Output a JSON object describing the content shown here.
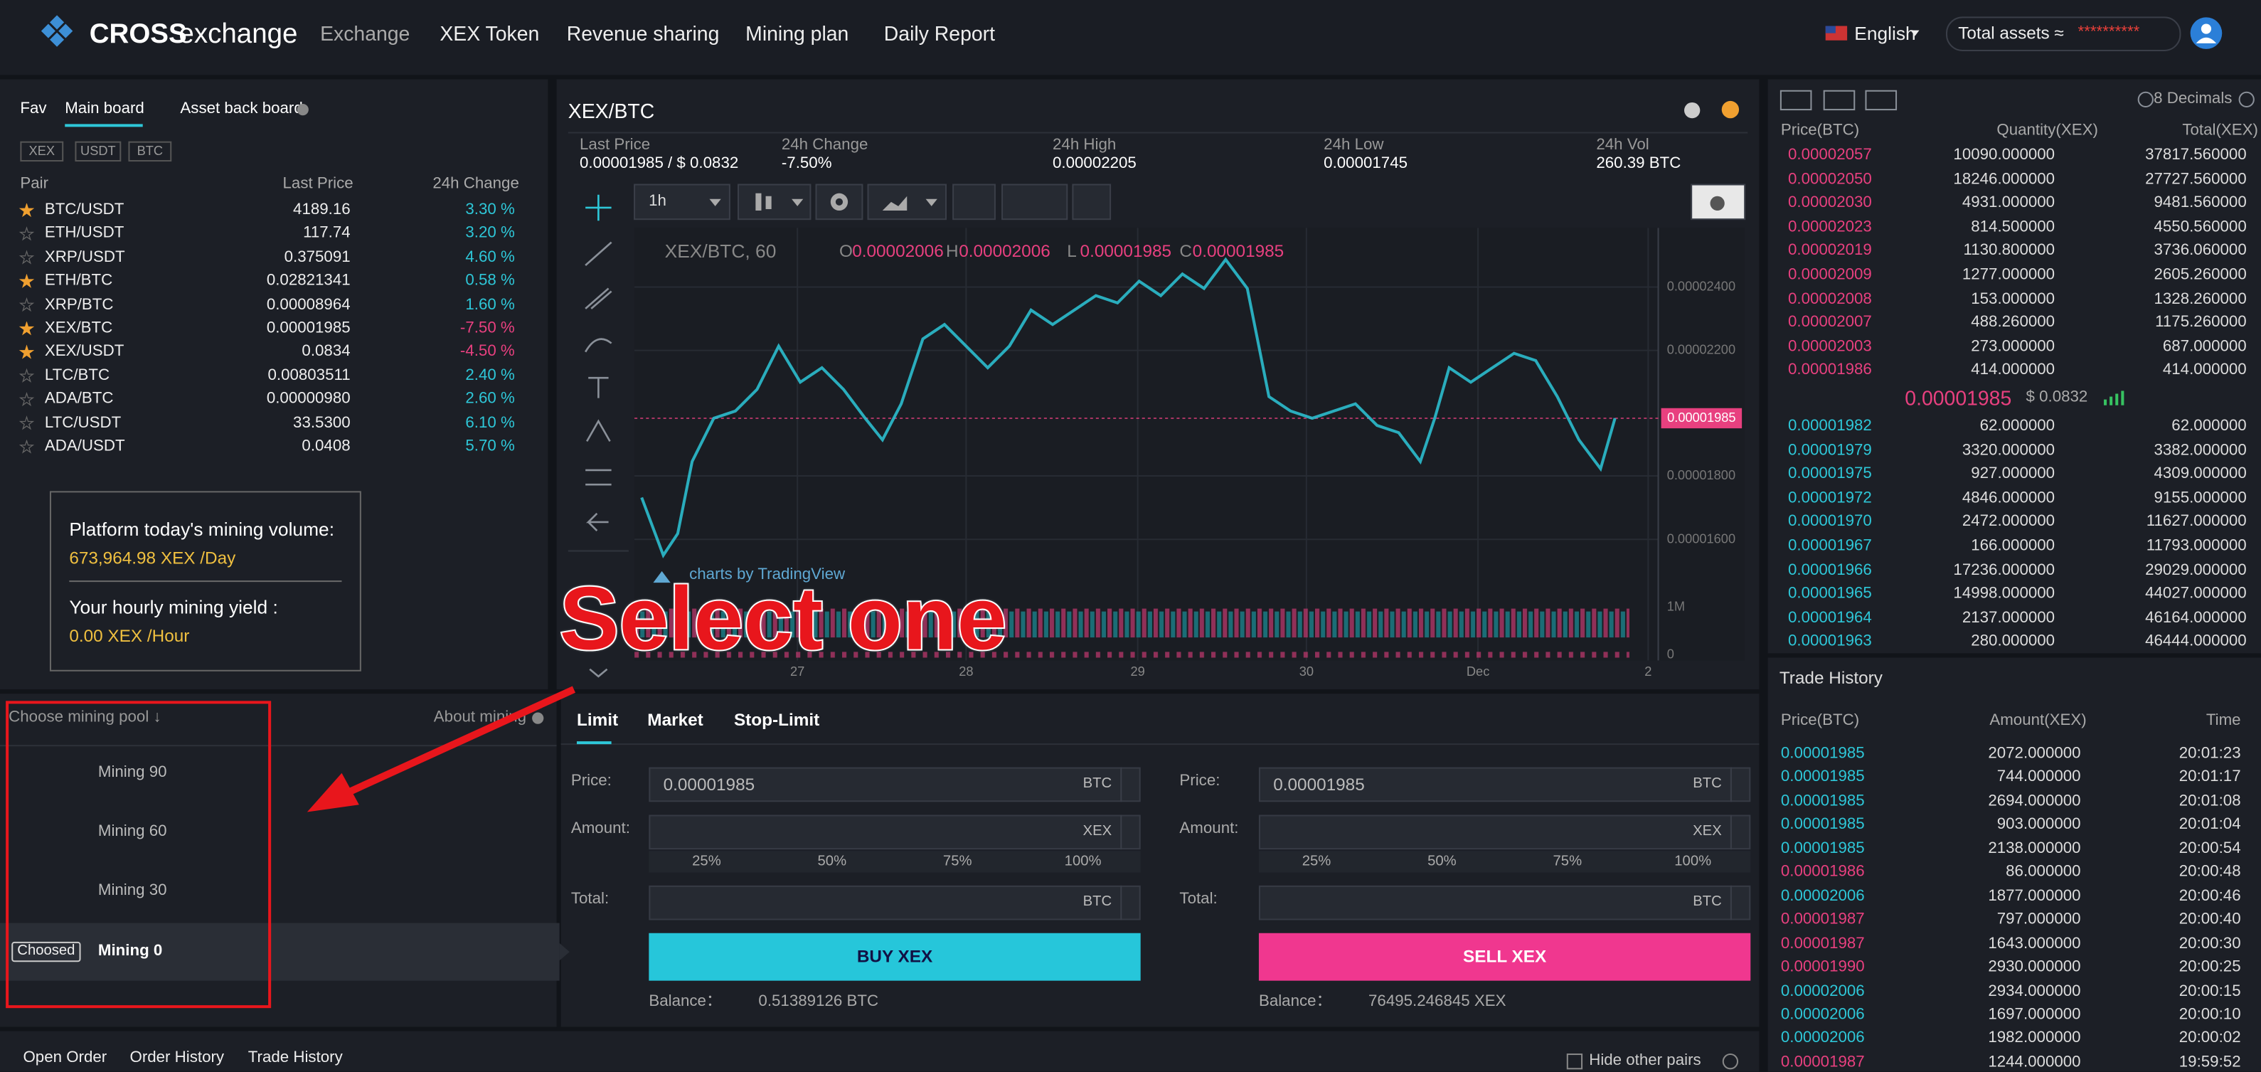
{
  "nav": {
    "brand": "CROSS",
    "brand_suffix": "exchange",
    "items": [
      "Exchange",
      "XEX Token",
      "Revenue sharing",
      "Mining plan",
      "Daily Report"
    ],
    "language": "English",
    "assets_label": "Total assets ≈",
    "assets_value": "**********"
  },
  "markets": {
    "tabs": [
      "Fav",
      "Main board",
      "Asset back board"
    ],
    "filters": [
      "XEX",
      "USDT",
      "BTC"
    ],
    "headers": [
      "Pair",
      "Last Price",
      "24h Change"
    ],
    "rows": [
      {
        "pair": "BTC/USDT",
        "price": "4189.16",
        "change": "3.30 %",
        "fav": true,
        "color": "#2ec7d8"
      },
      {
        "pair": "ETH/USDT",
        "price": "117.74",
        "change": "3.20 %",
        "fav": false,
        "color": "#2ec7d8"
      },
      {
        "pair": "XRP/USDT",
        "price": "0.375091",
        "change": "4.60 %",
        "fav": false,
        "color": "#2ec7d8"
      },
      {
        "pair": "ETH/BTC",
        "price": "0.02821341",
        "change": "0.58 %",
        "fav": true,
        "color": "#2ec7d8"
      },
      {
        "pair": "XRP/BTC",
        "price": "0.00008964",
        "change": "1.60 %",
        "fav": false,
        "color": "#2ec7d8"
      },
      {
        "pair": "XEX/BTC",
        "price": "0.00001985",
        "change": "-7.50 %",
        "fav": true,
        "color": "#e8407f"
      },
      {
        "pair": "XEX/USDT",
        "price": "0.0834",
        "change": "-4.50 %",
        "fav": true,
        "color": "#e8407f"
      },
      {
        "pair": "LTC/BTC",
        "price": "0.00803511",
        "change": "2.40 %",
        "fav": false,
        "color": "#2ec7d8"
      },
      {
        "pair": "ADA/BTC",
        "price": "0.00000980",
        "change": "2.60 %",
        "fav": false,
        "color": "#2ec7d8"
      },
      {
        "pair": "LTC/USDT",
        "price": "33.5300",
        "change": "6.10 %",
        "fav": false,
        "color": "#2ec7d8"
      },
      {
        "pair": "ADA/USDT",
        "price": "0.0408",
        "change": "5.70 %",
        "fav": false,
        "color": "#2ec7d8"
      }
    ]
  },
  "mining": {
    "volume_label": "Platform today's mining volume:",
    "volume": "673,964.98 XEX /Day",
    "yield_label": "Your hourly mining yield :",
    "yield": "0.00 XEX /Hour",
    "pool_header": "Choose mining pool ↓",
    "about": "About mining",
    "pools": [
      "Mining 90",
      "Mining 60",
      "Mining 30",
      "Mining 0"
    ],
    "selected_badge": "Choosed"
  },
  "chart": {
    "symbol": "XEX/BTC",
    "stats": [
      {
        "label": "Last Price",
        "value": "0.00001985 / $ 0.0832"
      },
      {
        "label": "24h Change",
        "value": "-7.50%"
      },
      {
        "label": "24h High",
        "value": "0.00002205"
      },
      {
        "label": "24h Low",
        "value": "0.00001745"
      },
      {
        "label": "24h Vol",
        "value": "260.39 BTC"
      }
    ],
    "interval": "1h",
    "legend": "XEX/BTC, 60",
    "ohlc": [
      {
        "label": "O",
        "value": "0.00002006"
      },
      {
        "label": "H",
        "value": "0.00002006"
      },
      {
        "label": "L",
        "value": "0.00001985"
      },
      {
        "label": "C",
        "value": "0.00001985"
      }
    ],
    "price_labels": [
      "0.00002400",
      "0.00002200",
      "0.00001800",
      "0.00001600"
    ],
    "last_price": "0.00001985",
    "volume_labels": [
      "1M",
      "0"
    ],
    "time_labels": [
      "27",
      "28",
      "29",
      "30",
      "Dec",
      "2"
    ],
    "credit": "charts by TradingView"
  },
  "annotation": "Select one",
  "order_form": {
    "tabs": [
      "Limit",
      "Market",
      "Stop-Limit"
    ],
    "buy": {
      "price_label": "Price:",
      "price": "0.00001985",
      "price_unit": "BTC",
      "amount_label": "Amount:",
      "amount_unit": "XEX",
      "percents": [
        "25%",
        "50%",
        "75%",
        "100%"
      ],
      "total_label": "Total:",
      "total_unit": "BTC",
      "button": "BUY XEX",
      "balance_label": "Balance：",
      "balance": "0.51389126 BTC"
    },
    "sell": {
      "price_label": "Price:",
      "price": "0.00001985",
      "price_unit": "BTC",
      "amount_label": "Amount:",
      "amount_unit": "XEX",
      "percents": [
        "25%",
        "50%",
        "75%",
        "100%"
      ],
      "total_label": "Total:",
      "total_unit": "BTC",
      "button": "SELL XEX",
      "balance_label": "Balance：",
      "balance": "76495.246845 XEX"
    }
  },
  "order_book": {
    "decimals": "8 Decimals",
    "headers": [
      "Price(BTC)",
      "Quantity(XEX)",
      "Total(XEX)"
    ],
    "asks": [
      [
        "0.00002057",
        "10090.000000",
        "37817.560000"
      ],
      [
        "0.00002050",
        "18246.000000",
        "27727.560000"
      ],
      [
        "0.00002030",
        "4931.000000",
        "9481.560000"
      ],
      [
        "0.00002023",
        "814.500000",
        "4550.560000"
      ],
      [
        "0.00002019",
        "1130.800000",
        "3736.060000"
      ],
      [
        "0.00002009",
        "1277.000000",
        "2605.260000"
      ],
      [
        "0.00002008",
        "153.000000",
        "1328.260000"
      ],
      [
        "0.00002007",
        "488.260000",
        "1175.260000"
      ],
      [
        "0.00002003",
        "273.000000",
        "687.000000"
      ],
      [
        "0.00001986",
        "414.000000",
        "414.000000"
      ]
    ],
    "mid_price": "0.00001985",
    "mid_usd": "$ 0.0832",
    "bids": [
      [
        "0.00001982",
        "62.000000",
        "62.000000"
      ],
      [
        "0.00001979",
        "3320.000000",
        "3382.000000"
      ],
      [
        "0.00001975",
        "927.000000",
        "4309.000000"
      ],
      [
        "0.00001972",
        "4846.000000",
        "9155.000000"
      ],
      [
        "0.00001970",
        "2472.000000",
        "11627.000000"
      ],
      [
        "0.00001967",
        "166.000000",
        "11793.000000"
      ],
      [
        "0.00001966",
        "17236.000000",
        "29029.000000"
      ],
      [
        "0.00001965",
        "14998.000000",
        "44027.000000"
      ],
      [
        "0.00001964",
        "2137.000000",
        "46164.000000"
      ],
      [
        "0.00001963",
        "280.000000",
        "46444.000000"
      ]
    ]
  },
  "trades": {
    "title": "Trade History",
    "headers": [
      "Price(BTC)",
      "Amount(XEX)",
      "Time"
    ],
    "rows": [
      {
        "price": "0.00001985",
        "amount": "2072.000000",
        "time": "20:01:23",
        "color": "#2ec7d8"
      },
      {
        "price": "0.00001985",
        "amount": "744.000000",
        "time": "20:01:17",
        "color": "#2ec7d8"
      },
      {
        "price": "0.00001985",
        "amount": "2694.000000",
        "time": "20:01:08",
        "color": "#2ec7d8"
      },
      {
        "price": "0.00001985",
        "amount": "903.000000",
        "time": "20:01:04",
        "color": "#2ec7d8"
      },
      {
        "price": "0.00001985",
        "amount": "2138.000000",
        "time": "20:00:54",
        "color": "#2ec7d8"
      },
      {
        "price": "0.00001986",
        "amount": "86.000000",
        "time": "20:00:48",
        "color": "#e8407f"
      },
      {
        "price": "0.00002006",
        "amount": "1877.000000",
        "time": "20:00:46",
        "color": "#2ec7d8"
      },
      {
        "price": "0.00001987",
        "amount": "797.000000",
        "time": "20:00:40",
        "color": "#e8407f"
      },
      {
        "price": "0.00001987",
        "amount": "1643.000000",
        "time": "20:00:30",
        "color": "#e8407f"
      },
      {
        "price": "0.00001990",
        "amount": "2930.000000",
        "time": "20:00:25",
        "color": "#e8407f"
      },
      {
        "price": "0.00002006",
        "amount": "2934.000000",
        "time": "20:00:15",
        "color": "#2ec7d8"
      },
      {
        "price": "0.00002006",
        "amount": "1697.000000",
        "time": "20:00:10",
        "color": "#2ec7d8"
      },
      {
        "price": "0.00002006",
        "amount": "1982.000000",
        "time": "20:00:02",
        "color": "#2ec7d8"
      },
      {
        "price": "0.00001987",
        "amount": "1244.000000",
        "time": "19:59:52",
        "color": "#e8407f"
      }
    ]
  },
  "orders": {
    "tabs": [
      "Open Order",
      "Order History",
      "Trade History"
    ],
    "hide_label": "Hide other pairs"
  }
}
